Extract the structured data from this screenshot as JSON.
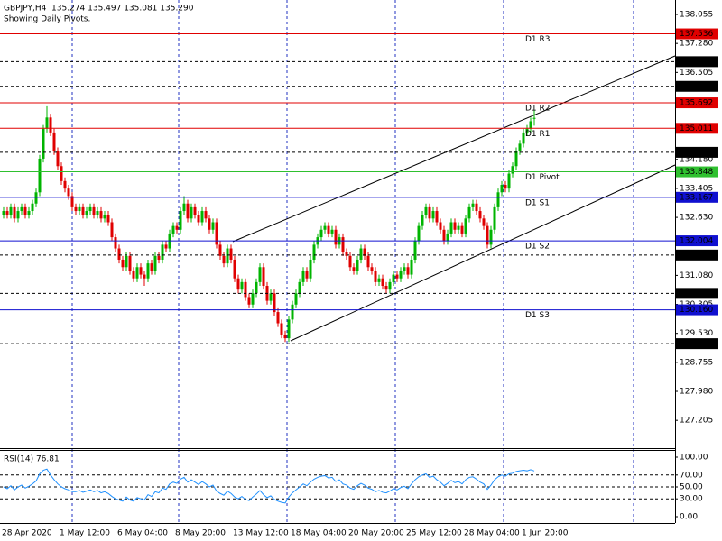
{
  "chart_data": [
    {
      "type": "candlestick",
      "title": "GBPJPY,H4  135.274 135.497 135.081 135.290",
      "subtitle": "Showing Daily Pivots.",
      "categories": [
        "28 Apr 2020",
        null,
        null,
        null,
        null,
        null,
        null,
        null,
        null,
        null,
        null,
        null,
        null,
        null,
        null,
        null,
        "1 May 12:00",
        null,
        null,
        null,
        null,
        null,
        null,
        null,
        null,
        null,
        null,
        null,
        null,
        null,
        null,
        null,
        "6 May 04:00",
        null,
        null,
        null,
        null,
        null,
        null,
        null,
        null,
        null,
        null,
        null,
        null,
        null,
        null,
        null,
        "8 May 20:00",
        null,
        null,
        null,
        null,
        null,
        null,
        null,
        null,
        null,
        null,
        null,
        null,
        null,
        null,
        null,
        "13 May 12:00",
        null,
        null,
        null,
        null,
        null,
        null,
        null,
        null,
        null,
        null,
        null,
        null,
        null,
        null,
        null,
        "18 May 04:00",
        null,
        null,
        null,
        null,
        null,
        null,
        null,
        null,
        null,
        null,
        null,
        null,
        null,
        null,
        null,
        "20 May 20:00",
        null,
        null,
        null,
        null,
        null,
        null,
        null,
        null,
        null,
        null,
        null,
        null,
        null,
        null,
        null,
        "25 May 12:00",
        null,
        null,
        null,
        null,
        null,
        null,
        null,
        null,
        null,
        null,
        null,
        null,
        null,
        null,
        null,
        "28 May 04:00",
        null,
        null,
        null,
        null,
        null,
        null,
        null,
        null,
        null,
        null,
        null,
        null,
        null,
        null,
        null,
        "1 Jun 20:00",
        null,
        null,
        null
      ],
      "candles": [
        [
          132.7,
          132.9,
          132.6,
          132.8
        ],
        [
          132.8,
          132.9,
          132.6,
          132.7
        ],
        [
          132.7,
          133.0,
          132.6,
          132.9
        ],
        [
          132.9,
          133.0,
          132.5,
          132.6
        ],
        [
          132.6,
          132.9,
          132.5,
          132.8
        ],
        [
          132.8,
          133.0,
          132.7,
          132.9
        ],
        [
          132.9,
          133.0,
          132.6,
          132.7
        ],
        [
          132.7,
          132.9,
          132.6,
          132.8
        ],
        [
          132.8,
          133.1,
          132.7,
          133.0
        ],
        [
          133.0,
          133.4,
          132.9,
          133.3
        ],
        [
          133.3,
          134.3,
          133.2,
          134.2
        ],
        [
          134.2,
          135.1,
          134.1,
          135.0
        ],
        [
          135.0,
          135.6,
          134.9,
          135.3
        ],
        [
          135.3,
          135.4,
          134.8,
          134.9
        ],
        [
          134.9,
          135.0,
          134.3,
          134.4
        ],
        [
          134.4,
          134.5,
          133.9,
          134.0
        ],
        [
          134.0,
          134.1,
          133.5,
          133.6
        ],
        [
          133.6,
          133.7,
          133.3,
          133.4
        ],
        [
          133.4,
          133.5,
          133.1,
          133.2
        ],
        [
          133.2,
          133.3,
          132.8,
          132.9
        ],
        [
          132.9,
          133.0,
          132.7,
          132.8
        ],
        [
          132.8,
          133.0,
          132.7,
          132.9
        ],
        [
          132.9,
          133.0,
          132.6,
          132.7
        ],
        [
          132.7,
          132.9,
          132.6,
          132.8
        ],
        [
          132.8,
          133.0,
          132.7,
          132.9
        ],
        [
          132.9,
          133.0,
          132.6,
          132.7
        ],
        [
          132.7,
          132.9,
          132.6,
          132.8
        ],
        [
          132.8,
          132.9,
          132.5,
          132.6
        ],
        [
          132.6,
          132.8,
          132.5,
          132.7
        ],
        [
          132.7,
          132.8,
          132.4,
          132.5
        ],
        [
          132.5,
          132.6,
          132.0,
          132.1
        ],
        [
          132.1,
          132.2,
          131.7,
          131.8
        ],
        [
          131.8,
          131.9,
          131.4,
          131.5
        ],
        [
          131.5,
          131.6,
          131.2,
          131.3
        ],
        [
          131.3,
          131.7,
          131.2,
          131.6
        ],
        [
          131.6,
          131.7,
          131.1,
          131.2
        ],
        [
          131.2,
          131.3,
          130.9,
          131.0
        ],
        [
          131.0,
          131.4,
          130.9,
          131.3
        ],
        [
          131.3,
          131.4,
          131.0,
          131.1
        ],
        [
          131.1,
          131.2,
          130.8,
          131.0
        ],
        [
          131.0,
          131.5,
          130.9,
          131.4
        ],
        [
          131.4,
          131.5,
          131.1,
          131.2
        ],
        [
          131.2,
          131.7,
          131.1,
          131.6
        ],
        [
          131.6,
          131.7,
          131.4,
          131.5
        ],
        [
          131.5,
          132.0,
          131.4,
          131.9
        ],
        [
          131.9,
          132.0,
          131.7,
          131.8
        ],
        [
          131.8,
          132.3,
          131.7,
          132.2
        ],
        [
          132.2,
          132.5,
          132.1,
          132.4
        ],
        [
          132.4,
          132.5,
          132.2,
          132.3
        ],
        [
          132.3,
          132.9,
          132.2,
          132.8
        ],
        [
          132.8,
          133.2,
          132.7,
          133.0
        ],
        [
          133.0,
          133.1,
          132.5,
          132.6
        ],
        [
          132.6,
          133.0,
          132.5,
          132.9
        ],
        [
          132.9,
          133.0,
          132.6,
          132.7
        ],
        [
          132.7,
          132.8,
          132.4,
          132.5
        ],
        [
          132.5,
          132.9,
          132.4,
          132.8
        ],
        [
          132.8,
          132.9,
          132.5,
          132.6
        ],
        [
          132.6,
          132.7,
          132.2,
          132.3
        ],
        [
          132.3,
          132.6,
          132.2,
          132.5
        ],
        [
          132.5,
          132.6,
          131.8,
          131.9
        ],
        [
          131.9,
          132.0,
          131.5,
          131.6
        ],
        [
          131.6,
          131.7,
          131.3,
          131.4
        ],
        [
          131.4,
          131.9,
          131.3,
          131.8
        ],
        [
          131.8,
          131.9,
          131.4,
          131.5
        ],
        [
          131.5,
          131.6,
          130.9,
          131.0
        ],
        [
          131.0,
          131.1,
          130.6,
          130.7
        ],
        [
          130.7,
          131.0,
          130.6,
          130.9
        ],
        [
          130.9,
          131.0,
          130.4,
          130.5
        ],
        [
          130.5,
          130.6,
          130.2,
          130.3
        ],
        [
          130.3,
          130.7,
          130.2,
          130.6
        ],
        [
          130.6,
          131.0,
          130.5,
          130.9
        ],
        [
          130.9,
          131.4,
          130.8,
          131.3
        ],
        [
          131.3,
          131.4,
          130.7,
          130.8
        ],
        [
          130.8,
          130.9,
          130.3,
          130.4
        ],
        [
          130.4,
          130.7,
          130.3,
          130.6
        ],
        [
          130.6,
          130.7,
          130.0,
          130.1
        ],
        [
          130.1,
          130.2,
          129.7,
          129.8
        ],
        [
          129.8,
          129.9,
          129.4,
          129.5
        ],
        [
          129.5,
          129.6,
          129.3,
          129.4
        ],
        [
          129.4,
          130.0,
          129.3,
          129.9
        ],
        [
          129.9,
          130.4,
          129.8,
          130.3
        ],
        [
          130.3,
          130.7,
          130.2,
          130.6
        ],
        [
          130.6,
          131.0,
          130.5,
          130.9
        ],
        [
          130.9,
          131.3,
          130.8,
          131.2
        ],
        [
          131.2,
          131.3,
          130.9,
          131.0
        ],
        [
          131.0,
          131.6,
          130.9,
          131.5
        ],
        [
          131.5,
          132.0,
          131.4,
          131.9
        ],
        [
          131.9,
          132.2,
          131.8,
          132.1
        ],
        [
          132.1,
          132.4,
          132.0,
          132.3
        ],
        [
          132.3,
          132.5,
          132.2,
          132.4
        ],
        [
          132.4,
          132.5,
          132.1,
          132.2
        ],
        [
          132.2,
          132.4,
          132.1,
          132.3
        ],
        [
          132.3,
          132.4,
          131.8,
          131.9
        ],
        [
          131.9,
          132.2,
          131.8,
          132.1
        ],
        [
          132.1,
          132.2,
          131.6,
          131.7
        ],
        [
          131.7,
          131.8,
          131.5,
          131.6
        ],
        [
          131.6,
          131.7,
          131.2,
          131.3
        ],
        [
          131.3,
          131.4,
          131.1,
          131.2
        ],
        [
          131.2,
          131.6,
          131.1,
          131.5
        ],
        [
          131.5,
          131.9,
          131.4,
          131.8
        ],
        [
          131.8,
          131.9,
          131.5,
          131.6
        ],
        [
          131.6,
          131.7,
          131.2,
          131.3
        ],
        [
          131.3,
          131.4,
          131.1,
          131.2
        ],
        [
          131.2,
          131.3,
          130.8,
          130.9
        ],
        [
          130.9,
          131.1,
          130.8,
          131.0
        ],
        [
          131.0,
          131.1,
          130.7,
          130.8
        ],
        [
          130.8,
          130.9,
          130.6,
          130.7
        ],
        [
          130.7,
          131.0,
          130.6,
          130.9
        ],
        [
          130.9,
          131.2,
          130.8,
          131.1
        ],
        [
          131.1,
          131.2,
          130.9,
          131.0
        ],
        [
          131.0,
          131.3,
          130.9,
          131.2
        ],
        [
          131.2,
          131.4,
          131.1,
          131.3
        ],
        [
          131.3,
          131.4,
          131.0,
          131.1
        ],
        [
          131.1,
          131.6,
          131.0,
          131.5
        ],
        [
          131.5,
          132.1,
          131.4,
          132.0
        ],
        [
          132.0,
          132.5,
          131.9,
          132.4
        ],
        [
          132.4,
          132.8,
          132.3,
          132.7
        ],
        [
          132.7,
          133.0,
          132.6,
          132.9
        ],
        [
          132.9,
          133.0,
          132.5,
          132.6
        ],
        [
          132.6,
          132.9,
          132.5,
          132.8
        ],
        [
          132.8,
          132.9,
          132.4,
          132.5
        ],
        [
          132.5,
          132.6,
          132.2,
          132.3
        ],
        [
          132.3,
          132.4,
          131.9,
          132.0
        ],
        [
          132.0,
          132.3,
          131.9,
          132.2
        ],
        [
          132.2,
          132.6,
          132.1,
          132.5
        ],
        [
          132.5,
          132.6,
          132.2,
          132.3
        ],
        [
          132.3,
          132.5,
          132.2,
          132.4
        ],
        [
          132.4,
          132.5,
          132.1,
          132.2
        ],
        [
          132.2,
          132.7,
          132.1,
          132.6
        ],
        [
          132.6,
          133.0,
          132.5,
          132.9
        ],
        [
          132.9,
          133.1,
          132.8,
          133.0
        ],
        [
          133.0,
          133.1,
          132.7,
          132.8
        ],
        [
          132.8,
          132.9,
          132.5,
          132.6
        ],
        [
          132.6,
          132.7,
          132.3,
          132.4
        ],
        [
          132.4,
          132.5,
          131.8,
          131.9
        ],
        [
          131.9,
          132.4,
          131.8,
          132.3
        ],
        [
          132.3,
          133.0,
          132.2,
          132.9
        ],
        [
          132.9,
          133.4,
          132.8,
          133.3
        ],
        [
          133.3,
          133.6,
          133.2,
          133.5
        ],
        [
          133.5,
          133.6,
          133.3,
          133.4
        ],
        [
          133.4,
          133.9,
          133.3,
          133.8
        ],
        [
          133.8,
          134.1,
          133.7,
          134.0
        ],
        [
          134.0,
          134.5,
          133.9,
          134.4
        ],
        [
          134.4,
          134.7,
          134.3,
          134.6
        ],
        [
          134.6,
          135.0,
          134.5,
          134.9
        ],
        [
          134.9,
          135.1,
          134.8,
          135.0
        ],
        [
          135.0,
          135.3,
          134.9,
          135.2
        ],
        [
          135.274,
          135.497,
          135.081,
          135.29
        ]
      ],
      "up_color": "#00b400",
      "down_color": "#e00000",
      "ylim": [
        126.462,
        138.441
      ],
      "yticks": [
        138.055,
        {
          "value": 137.28,
          "label": "137.280"
        },
        136.505,
        {
          "value": 134.18,
          "label": "134.180"
        },
        133.405,
        {
          "value": 132.63,
          "label": "132.630"
        },
        {
          "value": 131.08,
          "label": "131.080"
        },
        130.305,
        {
          "value": 129.53,
          "label": "129.530"
        },
        128.755,
        {
          "value": 127.98,
          "label": "127.980"
        },
        127.205
      ],
      "pivots": [
        {
          "name": "D1 R3",
          "value": 137.536,
          "color": "#e00000"
        },
        {
          "name": "D1 R2",
          "value": 135.692,
          "color": "#e00000"
        },
        {
          "name": "D1 R1",
          "value": 135.011,
          "color": "#e00000"
        },
        {
          "name": "D1 Pivot",
          "value": 133.848,
          "color": "#2fc02f"
        },
        {
          "name": "D1 S1",
          "value": 133.167,
          "color": "#1010d0"
        },
        {
          "name": "D1 S2",
          "value": 132.004,
          "color": "#1010d0"
        },
        {
          "name": "D1 S3",
          "value": 130.16,
          "label": "130.160",
          "color": "#1010d0"
        }
      ],
      "levels": [
        136.793,
        136.133,
        {
          "value": 134.37,
          "label": "134.370"
        },
        131.624,
        130.599,
        129.255
      ],
      "level_color": "#000000"
    },
    {
      "type": "line",
      "title": "RSI(14) 76.81",
      "color": "#1e90ff",
      "values": [
        50,
        47,
        52,
        45,
        50,
        53,
        48,
        51,
        55,
        60,
        72,
        78,
        80,
        70,
        62,
        55,
        50,
        47,
        45,
        42,
        42,
        44,
        41,
        43,
        45,
        42,
        44,
        40,
        42,
        39,
        34,
        30,
        28,
        26,
        33,
        28,
        26,
        32,
        30,
        28,
        37,
        34,
        42,
        40,
        48,
        46,
        55,
        58,
        56,
        63,
        66,
        58,
        62,
        58,
        54,
        59,
        55,
        50,
        53,
        43,
        39,
        36,
        43,
        39,
        33,
        30,
        34,
        29,
        27,
        33,
        38,
        44,
        37,
        32,
        35,
        29,
        26,
        24,
        23,
        33,
        40,
        45,
        50,
        55,
        52,
        58,
        63,
        66,
        68,
        69,
        65,
        66,
        59,
        62,
        55,
        53,
        48,
        46,
        52,
        56,
        53,
        48,
        46,
        42,
        44,
        41,
        40,
        43,
        47,
        45,
        49,
        51,
        47,
        55,
        62,
        67,
        70,
        72,
        66,
        68,
        62,
        58,
        52,
        56,
        61,
        57,
        59,
        55,
        62,
        66,
        67,
        63,
        58,
        55,
        46,
        53,
        62,
        67,
        70,
        68,
        72,
        73,
        76,
        77,
        78,
        77,
        79,
        76.81
      ],
      "ylim": [
        -10.6,
        110.6
      ],
      "yticks": [
        {
          "value": 100,
          "label": "100.00"
        },
        {
          "value": 70,
          "label": "70.00"
        },
        {
          "value": 50,
          "label": "50.00"
        },
        {
          "value": 30,
          "label": "30.00"
        },
        {
          "value": 0,
          "label": "0.00"
        }
      ],
      "levels": [
        70,
        50,
        30
      ]
    }
  ]
}
